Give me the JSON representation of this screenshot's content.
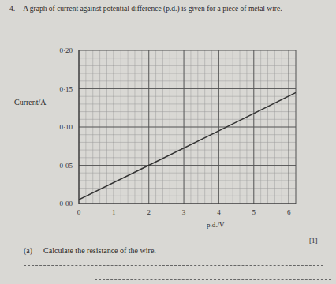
{
  "question": {
    "number": "4.",
    "text": "A graph of current against potential difference (p.d.) is given for a piece of metal wire.",
    "part_a": {
      "label": "(a)",
      "text": "Calculate the resistance of the wire.",
      "marks": "[1]"
    }
  },
  "chart_data": {
    "type": "line",
    "x_label": "p.d./V",
    "y_label": "Current/A",
    "x": [
      0,
      2,
      4,
      6.2
    ],
    "values": [
      0.005,
      0.05,
      0.095,
      0.145
    ],
    "color": "#333333",
    "xlim": [
      0,
      6.2
    ],
    "xticks": [
      0,
      1,
      2,
      3,
      4,
      5,
      6
    ],
    "ylim": [
      0,
      0.2
    ],
    "yticks": [
      {
        "value": 0,
        "label": "0·00"
      },
      {
        "value": 0.05,
        "label": "0·05"
      },
      {
        "value": 0.1,
        "label": "0·10"
      },
      {
        "value": 0.15,
        "label": "0·15"
      },
      {
        "value": 0.2,
        "label": "0·20"
      }
    ],
    "grid": true
  }
}
